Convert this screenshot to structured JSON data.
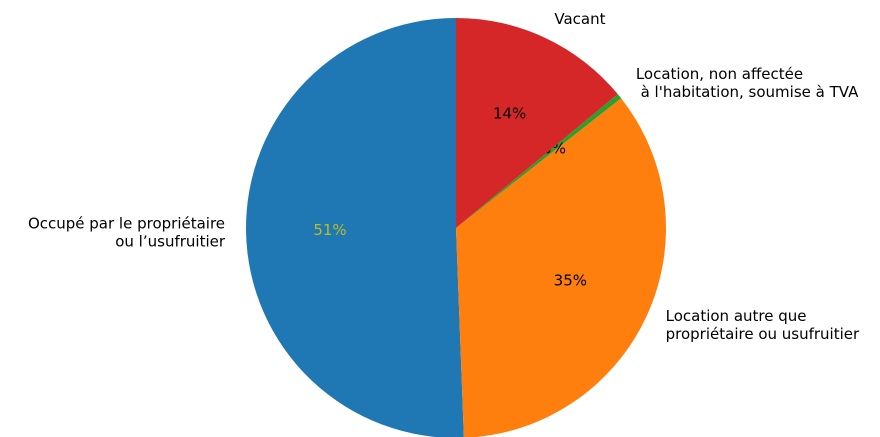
{
  "chart_data": {
    "type": "pie",
    "categories": [
      "Occupé par le propriétaire\nou l’usufruitier",
      "Location autre que\npropriétaire ou usufruitier",
      "Location, non affectée\n à l'habitation, soumise à TVA",
      "Vacant"
    ],
    "values": [
      50.6,
      35,
      0.4,
      14
    ],
    "value_labels": [
      "51%",
      "35%",
      "0%",
      "14%"
    ],
    "colors": [
      "#1f77b4",
      "#ff7f0e",
      "#2ca02c",
      "#d62728"
    ],
    "value_label_colors": [
      "#bcbd22",
      "#000000",
      "#000000",
      "#000000"
    ],
    "start_angle": 90,
    "counterclockwise": true
  }
}
